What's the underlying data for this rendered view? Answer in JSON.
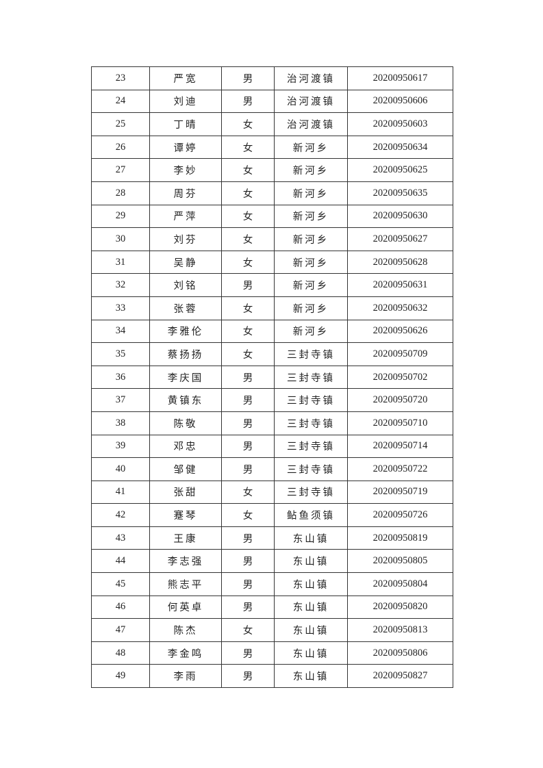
{
  "table": {
    "rows": [
      [
        "23",
        "严宽",
        "男",
        "治河渡镇",
        "20200950617"
      ],
      [
        "24",
        "刘迪",
        "男",
        "治河渡镇",
        "20200950606"
      ],
      [
        "25",
        "丁晴",
        "女",
        "治河渡镇",
        "20200950603"
      ],
      [
        "26",
        "谭婷",
        "女",
        "新河乡",
        "20200950634"
      ],
      [
        "27",
        "李妙",
        "女",
        "新河乡",
        "20200950625"
      ],
      [
        "28",
        "周芬",
        "女",
        "新河乡",
        "20200950635"
      ],
      [
        "29",
        "严萍",
        "女",
        "新河乡",
        "20200950630"
      ],
      [
        "30",
        "刘芬",
        "女",
        "新河乡",
        "20200950627"
      ],
      [
        "31",
        "吴静",
        "女",
        "新河乡",
        "20200950628"
      ],
      [
        "32",
        "刘铭",
        "男",
        "新河乡",
        "20200950631"
      ],
      [
        "33",
        "张蓉",
        "女",
        "新河乡",
        "20200950632"
      ],
      [
        "34",
        "李雅伦",
        "女",
        "新河乡",
        "20200950626"
      ],
      [
        "35",
        "蔡扬扬",
        "女",
        "三封寺镇",
        "20200950709"
      ],
      [
        "36",
        "李庆国",
        "男",
        "三封寺镇",
        "20200950702"
      ],
      [
        "37",
        "黄镇东",
        "男",
        "三封寺镇",
        "20200950720"
      ],
      [
        "38",
        "陈敬",
        "男",
        "三封寺镇",
        "20200950710"
      ],
      [
        "39",
        "邓忠",
        "男",
        "三封寺镇",
        "20200950714"
      ],
      [
        "40",
        "邹健",
        "男",
        "三封寺镇",
        "20200950722"
      ],
      [
        "41",
        "张甜",
        "女",
        "三封寺镇",
        "20200950719"
      ],
      [
        "42",
        "蹇琴",
        "女",
        "鲇鱼须镇",
        "20200950726"
      ],
      [
        "43",
        "王康",
        "男",
        "东山镇",
        "20200950819"
      ],
      [
        "44",
        "李志强",
        "男",
        "东山镇",
        "20200950805"
      ],
      [
        "45",
        "熊志平",
        "男",
        "东山镇",
        "20200950804"
      ],
      [
        "46",
        "何英卓",
        "男",
        "东山镇",
        "20200950820"
      ],
      [
        "47",
        "陈杰",
        "女",
        "东山镇",
        "20200950813"
      ],
      [
        "48",
        "李金鸣",
        "男",
        "东山镇",
        "20200950806"
      ],
      [
        "49",
        "李雨",
        "男",
        "东山镇",
        "20200950827"
      ]
    ]
  }
}
